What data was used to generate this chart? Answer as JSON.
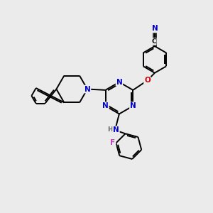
{
  "background_color": "#ebebeb",
  "figure_size": [
    3.0,
    3.0
  ],
  "dpi": 100,
  "atom_colors": {
    "C": "#000000",
    "N": "#0000cc",
    "O": "#cc0000",
    "F": "#bb44bb",
    "H": "#666666"
  },
  "bond_color": "#000000",
  "bond_width": 1.4,
  "font_size": 7.5,
  "font_size_small": 6.5,
  "xlim": [
    0,
    10
  ],
  "ylim": [
    0,
    10
  ]
}
